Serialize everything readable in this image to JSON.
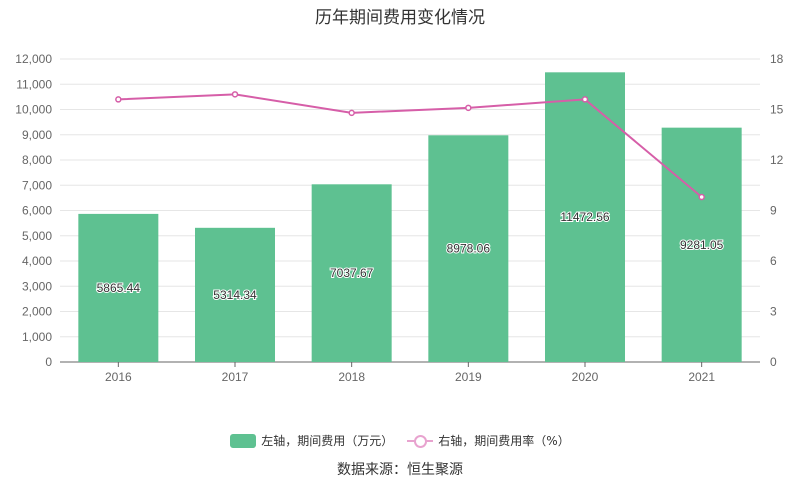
{
  "title": "历年期间费用变化情况",
  "source": "数据来源：恒生聚源",
  "colors": {
    "bar": "#5ec191",
    "line": "#d65ea8",
    "axis": "#666666",
    "grid": "#e6e6e6"
  },
  "legend": {
    "bar_label": "左轴，期间费用（万元）",
    "line_label": "右轴，期间费用率（%）"
  },
  "chart_data": {
    "type": "bar",
    "categories": [
      "2016",
      "2017",
      "2018",
      "2019",
      "2020",
      "2021"
    ],
    "series": [
      {
        "name": "左轴，期间费用（万元）",
        "axis": "left",
        "type": "bar",
        "values": [
          5865.44,
          5314.34,
          7037.67,
          8978.06,
          11472.56,
          9281.05
        ]
      },
      {
        "name": "右轴，期间费用率（%）",
        "axis": "right",
        "type": "line",
        "values": [
          15.6,
          15.9,
          14.8,
          15.1,
          15.6,
          9.8
        ]
      }
    ],
    "y_left": {
      "min": 0,
      "max": 12000,
      "ticks": [
        "0",
        "1,000",
        "2,000",
        "3,000",
        "4,000",
        "5,000",
        "6,000",
        "7,000",
        "8,000",
        "9,000",
        "10,000",
        "11,000",
        "12,000"
      ]
    },
    "y_right": {
      "min": 0,
      "max": 18,
      "ticks": [
        "0",
        "3",
        "6",
        "9",
        "12",
        "15",
        "18"
      ]
    },
    "data_labels": [
      "5865.44",
      "5314.34",
      "7037.67",
      "8978.06",
      "11472.56",
      "9281.05"
    ],
    "grid": true,
    "legend_position": "bottom"
  }
}
